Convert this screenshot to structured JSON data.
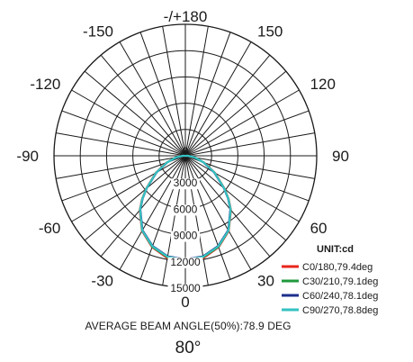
{
  "chart_data": {
    "type": "polar",
    "unit_label": "UNIT:cd",
    "radial_tick_labels": [
      "0",
      "3000",
      "6000",
      "9000",
      "12000",
      "15000"
    ],
    "radial_range": [
      0,
      15000
    ],
    "angle_tick_labels": [
      "-/+180",
      "150",
      "120",
      "90",
      "60",
      "30",
      "0",
      "-30",
      "-60",
      "-90",
      "-120",
      "-150"
    ],
    "angle_ticks": [
      180,
      150,
      120,
      90,
      60,
      30,
      0,
      -30,
      -60,
      -90,
      -120,
      -150
    ],
    "angle_grid_step_deg": 10,
    "grid": true,
    "legend_position": "bottom-right",
    "series": [
      {
        "name": "C0/180,79.4deg",
        "color": "#e8261c",
        "angles": [
          0,
          10,
          20,
          30,
          40,
          45,
          50,
          60,
          70,
          80,
          90,
          100,
          120,
          150,
          180
        ],
        "values": [
          12000,
          11850,
          11100,
          9900,
          8100,
          7000,
          5850,
          3900,
          2300,
          1150,
          300,
          20,
          0,
          0,
          0
        ]
      },
      {
        "name": "C30/210,79.1deg",
        "color": "#1f9a3c",
        "angles": [
          0,
          10,
          20,
          30,
          40,
          45,
          50,
          60,
          70,
          80,
          90,
          100,
          120,
          150,
          180
        ],
        "values": [
          11900,
          11750,
          11050,
          9850,
          8050,
          6950,
          5800,
          3850,
          2250,
          1100,
          280,
          20,
          0,
          0,
          0
        ]
      },
      {
        "name": "C60/240,78.1deg",
        "color": "#1c2f8c",
        "angles": [
          0,
          10,
          20,
          30,
          40,
          45,
          50,
          60,
          70,
          80,
          90,
          100,
          120,
          150,
          180
        ],
        "values": [
          11800,
          11650,
          10950,
          9800,
          8000,
          6900,
          5750,
          3800,
          2200,
          1080,
          270,
          20,
          0,
          0,
          0
        ]
      },
      {
        "name": "C90/270,78.8deg",
        "color": "#35c2c2",
        "angles": [
          0,
          10,
          20,
          30,
          40,
          45,
          50,
          60,
          70,
          80,
          90,
          100,
          120,
          150,
          180
        ],
        "values": [
          11850,
          11700,
          11000,
          9850,
          8050,
          6950,
          5800,
          3850,
          2250,
          1100,
          280,
          20,
          0,
          0,
          0
        ]
      }
    ],
    "caption": "AVERAGE BEAM ANGLE(50%):78.9 DEG",
    "beam_angle_label": "80°"
  }
}
